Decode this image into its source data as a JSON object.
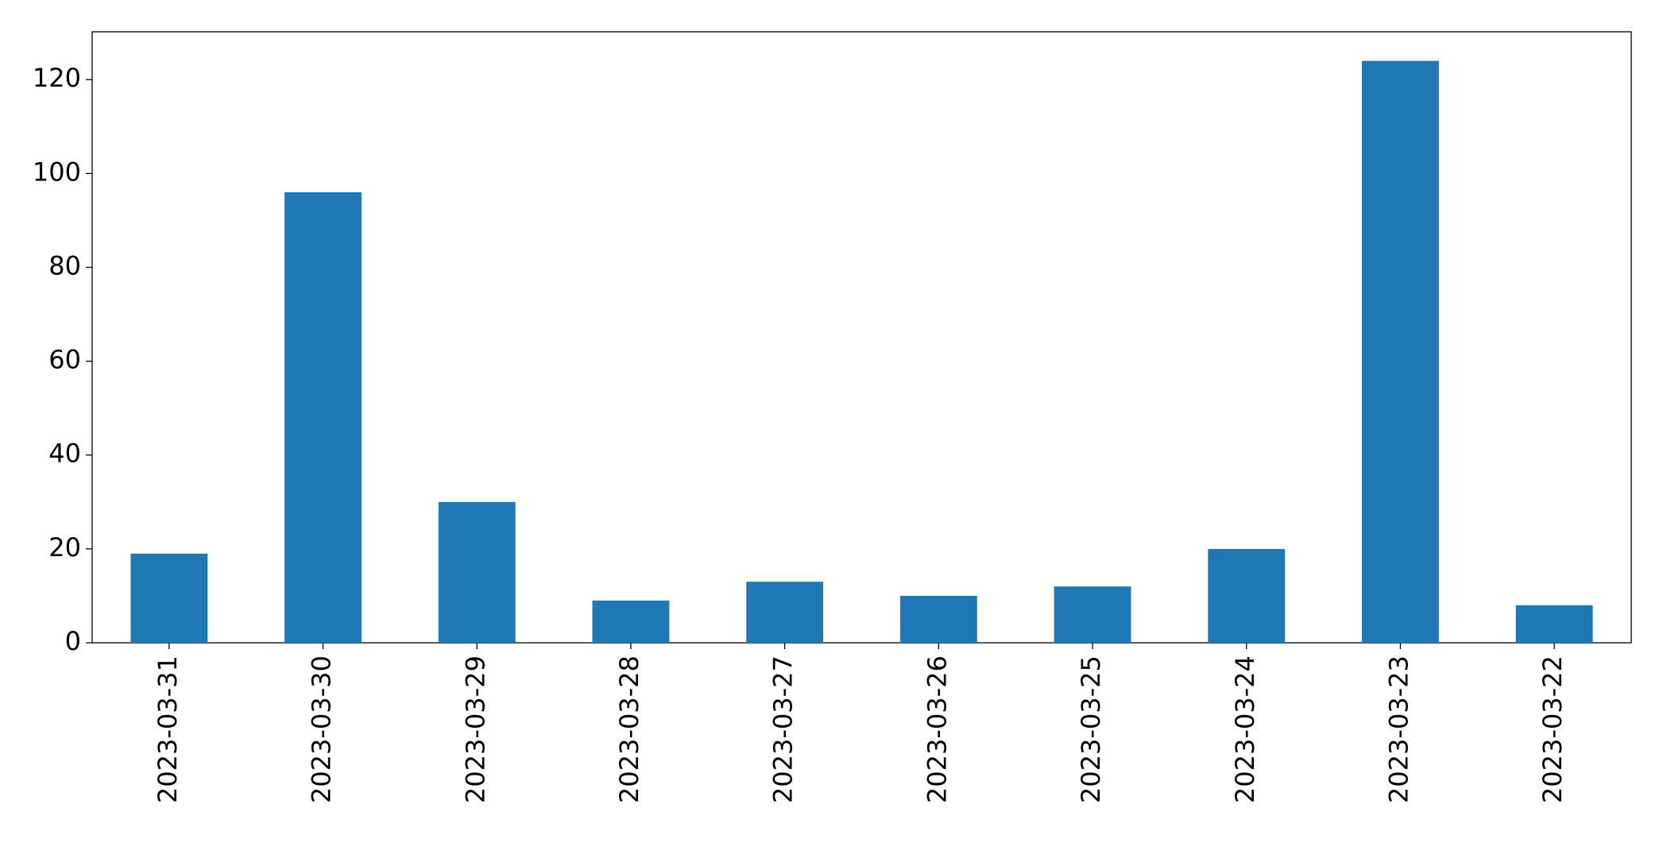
{
  "chart_data": {
    "type": "bar",
    "categories": [
      "2023-03-31",
      "2023-03-30",
      "2023-03-29",
      "2023-03-28",
      "2023-03-27",
      "2023-03-26",
      "2023-03-25",
      "2023-03-24",
      "2023-03-23",
      "2023-03-22"
    ],
    "values": [
      19,
      96,
      30,
      9,
      13,
      10,
      12,
      20,
      124,
      8
    ],
    "color": "#1f77b4",
    "ylim": [
      0,
      130.2
    ],
    "yticks": [
      0,
      20,
      40,
      60,
      80,
      100,
      120
    ],
    "grid": false
  }
}
